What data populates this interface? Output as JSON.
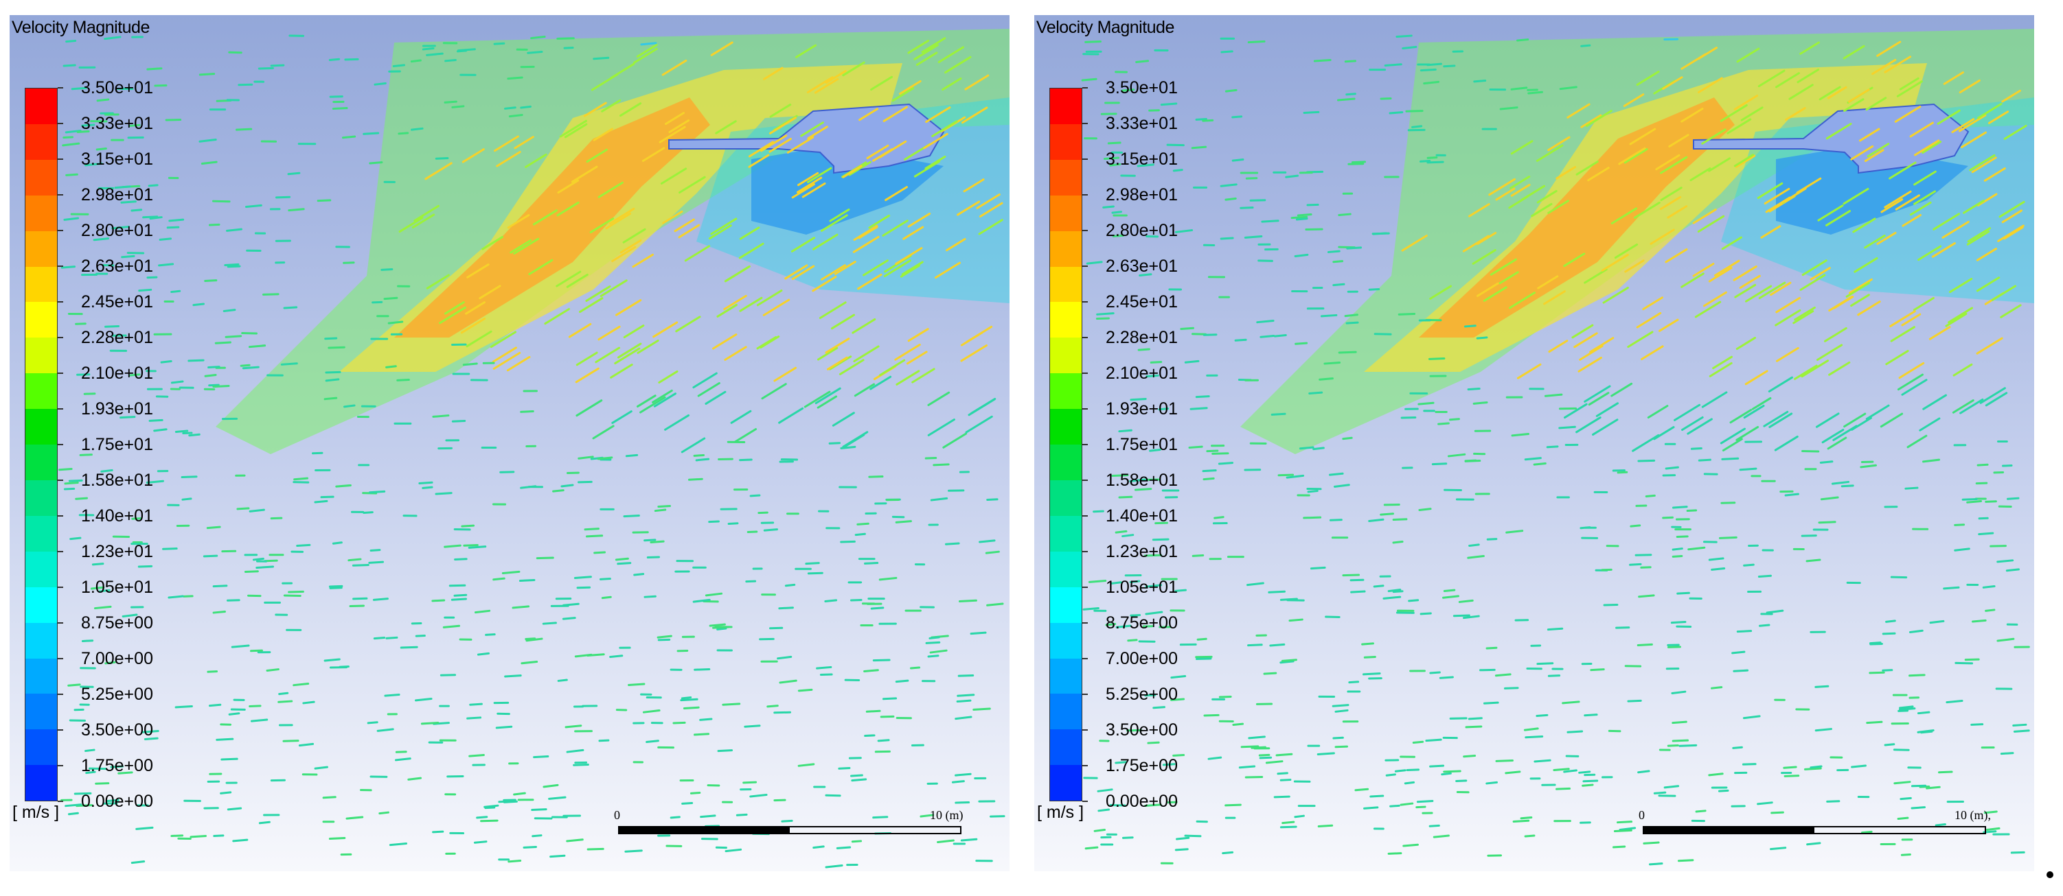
{
  "panels": [
    {
      "title": "Velocity Magnitude",
      "unit": "[ m/s ]",
      "colorbar_ticks": [
        "3.50e+01",
        "3.33e+01",
        "3.15e+01",
        "2.98e+01",
        "2.80e+01",
        "2.63e+01",
        "2.45e+01",
        "2.28e+01",
        "2.10e+01",
        "1.93e+01",
        "1.75e+01",
        "1.58e+01",
        "1.40e+01",
        "1.23e+01",
        "1.05e+01",
        "8.75e+00",
        "7.00e+00",
        "5.25e+00",
        "3.50e+00",
        "1.75e+00",
        "0.00e+00"
      ],
      "colorbar_colors": [
        "#ff0000",
        "#ff2a00",
        "#ff5500",
        "#ff8000",
        "#ffaa00",
        "#ffd500",
        "#ffff00",
        "#d5ff00",
        "#55ff00",
        "#00e000",
        "#00e040",
        "#00e080",
        "#00e8a8",
        "#00f0d0",
        "#00ffff",
        "#00d5ff",
        "#00aaff",
        "#0080ff",
        "#0055ff",
        "#002aff"
      ],
      "scale_start": "0",
      "scale_end": "10 (m)"
    },
    {
      "title": "Velocity Magnitude",
      "unit": "[ m/s ]",
      "colorbar_ticks": [
        "3.50e+01",
        "3.33e+01",
        "3.15e+01",
        "2.98e+01",
        "2.80e+01",
        "2.63e+01",
        "2.45e+01",
        "2.28e+01",
        "2.10e+01",
        "1.93e+01",
        "1.75e+01",
        "1.58e+01",
        "1.40e+01",
        "1.23e+01",
        "1.05e+01",
        "8.75e+00",
        "7.00e+00",
        "5.25e+00",
        "3.50e+00",
        "1.75e+00",
        "0.00e+00"
      ],
      "colorbar_colors": [
        "#ff0000",
        "#ff2a00",
        "#ff5500",
        "#ff8000",
        "#ffaa00",
        "#ffd500",
        "#ffff00",
        "#d5ff00",
        "#55ff00",
        "#00e000",
        "#00e040",
        "#00e080",
        "#00e8a8",
        "#00f0d0",
        "#00ffff",
        "#00d5ff",
        "#00aaff",
        "#0080ff",
        "#0055ff",
        "#002aff"
      ],
      "scale_start": "0",
      "scale_end": "10 (m),"
    }
  ]
}
